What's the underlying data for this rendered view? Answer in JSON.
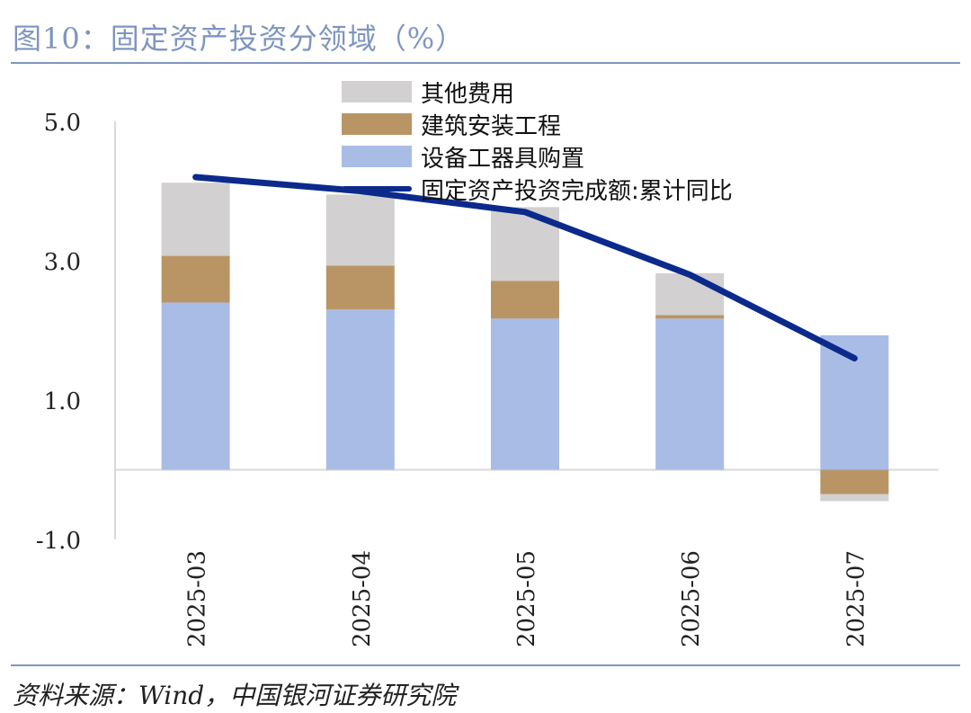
{
  "title": "图10：固定资产投资分领域（%）",
  "source": "资料来源：Wind，中国银河证券研究院",
  "chart_data": {
    "type": "bar",
    "stacked": true,
    "categories": [
      "2025-03",
      "2025-04",
      "2025-05",
      "2025-06",
      "2025-07"
    ],
    "yticks": [
      "5.0",
      "3.0",
      "1.0",
      "-1.0"
    ],
    "ylim": [
      -1.0,
      5.0
    ],
    "series": [
      {
        "name": "设备工器具购置",
        "kind": "bar",
        "color": "#a9bce6",
        "values": [
          2.4,
          2.3,
          2.17,
          2.17,
          1.93
        ]
      },
      {
        "name": "建筑安装工程",
        "kind": "bar",
        "color": "#b99566",
        "values": [
          0.67,
          0.63,
          0.54,
          0.05,
          -0.35
        ]
      },
      {
        "name": "其他费用",
        "kind": "bar",
        "color": "#d2d0d1",
        "values": [
          1.05,
          1.02,
          1.06,
          0.6,
          -0.1
        ]
      },
      {
        "name": "固定资产投资完成额:累计同比",
        "kind": "line",
        "color": "#0b2a8c",
        "values": [
          4.2,
          4.0,
          3.7,
          2.8,
          1.6
        ]
      }
    ],
    "legend_position": "top-center",
    "grid": false
  }
}
